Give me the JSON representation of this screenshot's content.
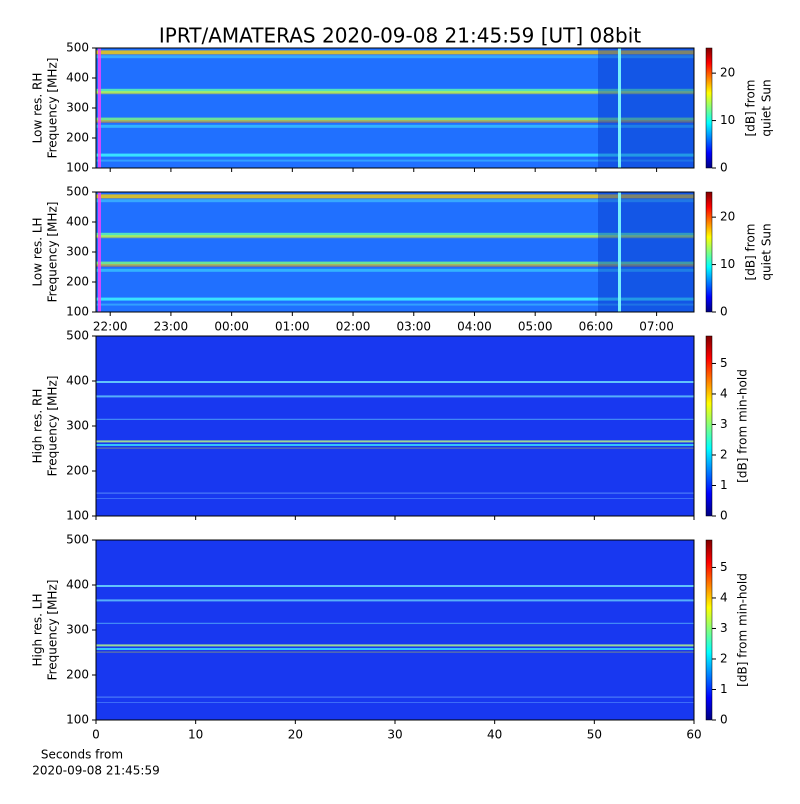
{
  "chart_data": [
    {
      "type": "spectrogram",
      "title": "IPRT/AMATERAS 2020-09-08 21:45:59 [UT]   08bit",
      "ylabel": [
        "Low res. RH",
        "Frequency [MHz]"
      ],
      "ylim": [
        100,
        500
      ],
      "yticks": [
        100,
        200,
        300,
        400,
        500
      ],
      "xlim": [
        0,
        9.85
      ],
      "clim": [
        0,
        25.3
      ],
      "cticks": [
        0,
        10,
        20
      ],
      "clabel": [
        "[dB] from",
        "quiet Sun"
      ]
    },
    {
      "type": "spectrogram",
      "ylabel": [
        "Low res. LH",
        "Frequency [MHz]"
      ],
      "ylim": [
        100,
        500
      ],
      "yticks": [
        100,
        200,
        300,
        400,
        500
      ],
      "xlim": [
        0,
        9.85
      ],
      "xticks": [
        {
          "value": 0.234,
          "label": "22:00"
        },
        {
          "value": 1.234,
          "label": "23:00"
        },
        {
          "value": 2.234,
          "label": "00:00"
        },
        {
          "value": 3.234,
          "label": "01:00"
        },
        {
          "value": 4.234,
          "label": "02:00"
        },
        {
          "value": 5.234,
          "label": "03:00"
        },
        {
          "value": 6.234,
          "label": "04:00"
        },
        {
          "value": 7.234,
          "label": "05:00"
        },
        {
          "value": 8.234,
          "label": "06:00"
        },
        {
          "value": 9.234,
          "label": "07:00"
        }
      ],
      "clim": [
        0,
        25.3
      ],
      "cticks": [
        0,
        10,
        20
      ],
      "clabel": [
        "[dB] from",
        "quiet Sun"
      ]
    },
    {
      "type": "spectrogram",
      "ylabel": [
        "High res. RH",
        "Frequency [MHz]"
      ],
      "ylim": [
        100,
        500
      ],
      "yticks": [
        100,
        200,
        300,
        400,
        500
      ],
      "xlim": [
        0,
        60
      ],
      "clim": [
        0,
        5.9
      ],
      "cticks": [
        0,
        1,
        2,
        3,
        4,
        5
      ],
      "clabel": [
        "[dB] from min-hold"
      ]
    },
    {
      "type": "spectrogram",
      "ylabel": [
        "High res. LH",
        "Frequency [MHz]"
      ],
      "ylim": [
        100,
        500
      ],
      "yticks": [
        100,
        200,
        300,
        400,
        500
      ],
      "xlim": [
        0,
        60
      ],
      "xticks": [
        0,
        10,
        20,
        30,
        40,
        50,
        60
      ],
      "xlabel": [
        "Seconds from",
        "2020-09-08 21:45:59"
      ],
      "clim": [
        0,
        5.9
      ],
      "cticks": [
        0,
        1,
        2,
        3,
        4,
        5
      ],
      "clabel": [
        "[dB] from min-hold"
      ]
    }
  ]
}
